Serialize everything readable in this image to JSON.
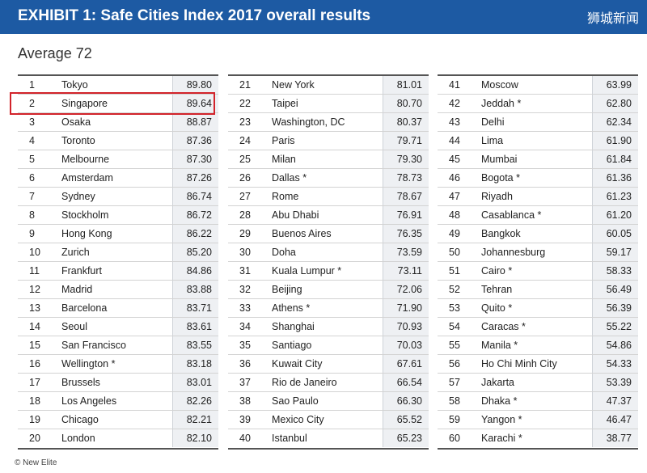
{
  "header": {
    "title": "EXHIBIT 1: Safe Cities Index 2017 overall results",
    "logo": "狮城新闻"
  },
  "average_label": "Average 72",
  "source_note": "© New Elite",
  "highlight_color": "#d2232a",
  "chart_data": {
    "type": "table",
    "title": "EXHIBIT 1: Safe Cities Index 2017 overall results",
    "subtitle": "Average 72",
    "columns": [
      {
        "rows": [
          {
            "rank": "1",
            "city": "Tokyo",
            "score": "89.80"
          },
          {
            "rank": "2",
            "city": "Singapore",
            "score": "89.64"
          },
          {
            "rank": "3",
            "city": "Osaka",
            "score": "88.87"
          },
          {
            "rank": "4",
            "city": "Toronto",
            "score": "87.36"
          },
          {
            "rank": "5",
            "city": "Melbourne",
            "score": "87.30"
          },
          {
            "rank": "6",
            "city": "Amsterdam",
            "score": "87.26"
          },
          {
            "rank": "7",
            "city": "Sydney",
            "score": "86.74"
          },
          {
            "rank": "8",
            "city": "Stockholm",
            "score": "86.72"
          },
          {
            "rank": "9",
            "city": "Hong Kong",
            "score": "86.22"
          },
          {
            "rank": "10",
            "city": "Zurich",
            "score": "85.20"
          },
          {
            "rank": "11",
            "city": "Frankfurt",
            "score": "84.86"
          },
          {
            "rank": "12",
            "city": "Madrid",
            "score": "83.88"
          },
          {
            "rank": "13",
            "city": "Barcelona",
            "score": "83.71"
          },
          {
            "rank": "14",
            "city": "Seoul",
            "score": "83.61"
          },
          {
            "rank": "15",
            "city": "San Francisco",
            "score": "83.55"
          },
          {
            "rank": "16",
            "city": "Wellington *",
            "score": "83.18"
          },
          {
            "rank": "17",
            "city": "Brussels",
            "score": "83.01"
          },
          {
            "rank": "18",
            "city": "Los Angeles",
            "score": "82.26"
          },
          {
            "rank": "19",
            "city": "Chicago",
            "score": "82.21"
          },
          {
            "rank": "20",
            "city": "London",
            "score": "82.10"
          }
        ]
      },
      {
        "rows": [
          {
            "rank": "21",
            "city": "New York",
            "score": "81.01"
          },
          {
            "rank": "22",
            "city": "Taipei",
            "score": "80.70"
          },
          {
            "rank": "23",
            "city": "Washington, DC",
            "score": "80.37"
          },
          {
            "rank": "24",
            "city": "Paris",
            "score": "79.71"
          },
          {
            "rank": "25",
            "city": "Milan",
            "score": "79.30"
          },
          {
            "rank": "26",
            "city": "Dallas *",
            "score": "78.73"
          },
          {
            "rank": "27",
            "city": "Rome",
            "score": "78.67"
          },
          {
            "rank": "28",
            "city": "Abu Dhabi",
            "score": "76.91"
          },
          {
            "rank": "29",
            "city": "Buenos Aires",
            "score": "76.35"
          },
          {
            "rank": "30",
            "city": "Doha",
            "score": "73.59"
          },
          {
            "rank": "31",
            "city": "Kuala Lumpur *",
            "score": "73.11"
          },
          {
            "rank": "32",
            "city": "Beijing",
            "score": "72.06"
          },
          {
            "rank": "33",
            "city": "Athens *",
            "score": "71.90"
          },
          {
            "rank": "34",
            "city": "Shanghai",
            "score": "70.93"
          },
          {
            "rank": "35",
            "city": "Santiago",
            "score": "70.03"
          },
          {
            "rank": "36",
            "city": "Kuwait City",
            "score": "67.61"
          },
          {
            "rank": "37",
            "city": "Rio de Janeiro",
            "score": "66.54"
          },
          {
            "rank": "38",
            "city": "Sao Paulo",
            "score": "66.30"
          },
          {
            "rank": "39",
            "city": "Mexico City",
            "score": "65.52"
          },
          {
            "rank": "40",
            "city": "Istanbul",
            "score": "65.23"
          }
        ]
      },
      {
        "rows": [
          {
            "rank": "41",
            "city": "Moscow",
            "score": "63.99"
          },
          {
            "rank": "42",
            "city": "Jeddah *",
            "score": "62.80"
          },
          {
            "rank": "43",
            "city": "Delhi",
            "score": "62.34"
          },
          {
            "rank": "44",
            "city": "Lima",
            "score": "61.90"
          },
          {
            "rank": "45",
            "city": "Mumbai",
            "score": "61.84"
          },
          {
            "rank": "46",
            "city": "Bogota *",
            "score": "61.36"
          },
          {
            "rank": "47",
            "city": "Riyadh",
            "score": "61.23"
          },
          {
            "rank": "48",
            "city": "Casablanca *",
            "score": "61.20"
          },
          {
            "rank": "49",
            "city": "Bangkok",
            "score": "60.05"
          },
          {
            "rank": "50",
            "city": "Johannesburg",
            "score": "59.17"
          },
          {
            "rank": "51",
            "city": "Cairo *",
            "score": "58.33"
          },
          {
            "rank": "52",
            "city": "Tehran",
            "score": "56.49"
          },
          {
            "rank": "53",
            "city": "Quito *",
            "score": "56.39"
          },
          {
            "rank": "54",
            "city": "Caracas *",
            "score": "55.22"
          },
          {
            "rank": "55",
            "city": "Manila *",
            "score": "54.86"
          },
          {
            "rank": "56",
            "city": "Ho Chi Minh City",
            "score": "54.33"
          },
          {
            "rank": "57",
            "city": "Jakarta",
            "score": "53.39"
          },
          {
            "rank": "58",
            "city": "Dhaka *",
            "score": "47.37"
          },
          {
            "rank": "59",
            "city": "Yangon *",
            "score": "46.47"
          },
          {
            "rank": "60",
            "city": "Karachi *",
            "score": "38.77"
          }
        ]
      }
    ]
  }
}
